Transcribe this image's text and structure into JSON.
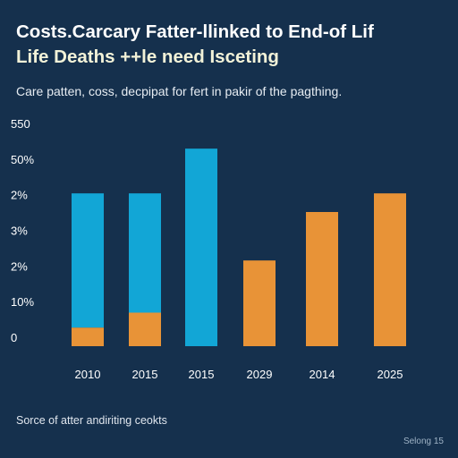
{
  "header": {
    "title_line1": "Costs.Carcary Fatter-llinked to End-of Lif",
    "title_line2": "Life Deaths ++le need Isceting",
    "subtitle": "Care patten, coss, decpipat for fert in pakir of the pagthing."
  },
  "footer": {
    "source": "Sorce of atter andiriting ceokts",
    "signature": "Selong 15"
  },
  "colors": {
    "background": "#15304d",
    "blue": "#12a6d6",
    "orange": "#e89337",
    "text": "#ffffff"
  },
  "chart_data": {
    "type": "bar",
    "title": "",
    "xlabel": "",
    "ylabel": "",
    "y_tick_labels": [
      "550",
      "50%",
      "2%",
      "3%",
      "2%",
      "10%",
      "0"
    ],
    "ylim": [
      0,
      6
    ],
    "grid": false,
    "legend": "none",
    "stacked": true,
    "categories": [
      "2010",
      "2015",
      "2015",
      "2029",
      "2014",
      "2025"
    ],
    "series": [
      {
        "color": "#e89337",
        "values": [
          0.5,
          0.9,
          0,
          2.3,
          3.6,
          4.1
        ]
      },
      {
        "color": "#12a6d6",
        "values": [
          3.6,
          3.2,
          5.3,
          0,
          0,
          0
        ]
      }
    ]
  }
}
